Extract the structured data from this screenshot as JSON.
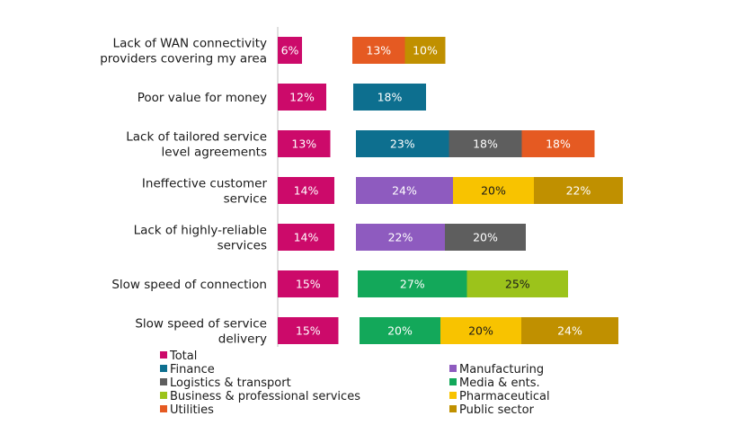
{
  "chart_data": {
    "type": "bar",
    "orientation": "horizontal",
    "title": "",
    "xlabel": "",
    "ylabel": "",
    "categories": [
      "Lack of WAN connectivity providers covering my area",
      "Poor value for money",
      "Lack of tailored service level agreements",
      "Ineffective customer service",
      "Lack of highly-reliable services",
      "Slow speed of connection",
      "Slow speed of service delivery"
    ],
    "category_lines": [
      [
        "Lack of WAN connectivity",
        "providers covering my area"
      ],
      [
        "Poor value for money"
      ],
      [
        "Lack of tailored service",
        "level agreements"
      ],
      [
        "Ineffective customer",
        "service"
      ],
      [
        "Lack of highly-reliable",
        "services"
      ],
      [
        "Slow speed of connection"
      ],
      [
        "Slow speed of service",
        "delivery"
      ]
    ],
    "series": [
      {
        "name": "Total",
        "color": "#cc0a6a",
        "values": [
          6,
          12,
          13,
          14,
          14,
          15,
          15
        ]
      },
      {
        "name": "Finance",
        "color": "#0d6f8f",
        "values": [
          null,
          18,
          23,
          null,
          null,
          null,
          null
        ]
      },
      {
        "name": "Manufacturing",
        "color": "#8e5bbf",
        "values": [
          null,
          null,
          null,
          24,
          22,
          null,
          null
        ]
      },
      {
        "name": "Logistics & transport",
        "color": "#5e5e5e",
        "values": [
          null,
          null,
          18,
          null,
          20,
          null,
          null
        ]
      },
      {
        "name": "Media & ents.",
        "color": "#13a85a",
        "values": [
          null,
          null,
          null,
          null,
          null,
          27,
          20
        ]
      },
      {
        "name": "Business & professional services",
        "color": "#9cc31b",
        "values": [
          null,
          null,
          null,
          null,
          null,
          25,
          null
        ]
      },
      {
        "name": "Pharmaceutical",
        "color": "#f8c300",
        "values": [
          null,
          null,
          null,
          20,
          null,
          null,
          20
        ]
      },
      {
        "name": "Utilities",
        "color": "#e55a22",
        "values": [
          13,
          null,
          18,
          null,
          null,
          null,
          null
        ]
      },
      {
        "name": "Public sector",
        "color": "#c09000",
        "values": [
          10,
          null,
          null,
          22,
          null,
          null,
          24
        ]
      }
    ],
    "sector_stack_order": [
      [
        "Utilities",
        "Public sector"
      ],
      [
        "Finance"
      ],
      [
        "Finance",
        "Logistics & transport",
        "Utilities"
      ],
      [
        "Manufacturing",
        "Pharmaceutical",
        "Public sector"
      ],
      [
        "Manufacturing",
        "Logistics & transport"
      ],
      [
        "Media & ents.",
        "Business & professional services"
      ],
      [
        "Media & ents.",
        "Pharmaceutical",
        "Public sector"
      ]
    ],
    "value_suffix": "%",
    "dark_label_series": [
      "Pharmaceutical",
      "Business & professional services"
    ],
    "legend": {
      "placement": "bottom",
      "items": [
        "Total",
        "Finance",
        "Manufacturing",
        "Logistics & transport",
        "Media & ents.",
        "Business & professional services",
        "Pharmaceutical",
        "Utilities",
        "Public sector"
      ]
    }
  }
}
